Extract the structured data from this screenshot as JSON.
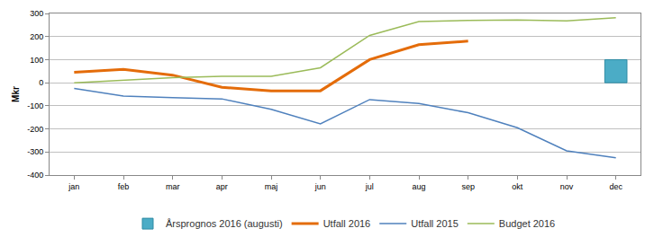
{
  "chart_data": {
    "type": "line",
    "y_label": "Mkr",
    "categories": [
      "jan",
      "feb",
      "mar",
      "apr",
      "maj",
      "jun",
      "jul",
      "aug",
      "sep",
      "okt",
      "nov",
      "dec"
    ],
    "series": [
      {
        "name": "Årsprognos 2016 (augusti)",
        "type": "bar",
        "color": "#4bacc6",
        "values": [
          null,
          null,
          null,
          null,
          null,
          null,
          null,
          null,
          null,
          null,
          null,
          100
        ]
      },
      {
        "name": "Utfall 2016",
        "type": "line",
        "color": "#e46c0a",
        "values": [
          45,
          58,
          33,
          -20,
          -35,
          -35,
          100,
          165,
          180,
          null,
          null,
          null
        ]
      },
      {
        "name": "Utfall 2015",
        "type": "line",
        "color": "#4f81bd",
        "values": [
          -25,
          -58,
          -65,
          -70,
          -115,
          -178,
          -73,
          -90,
          -130,
          -195,
          -295,
          -325
        ]
      },
      {
        "name": "Budget 2016",
        "type": "line",
        "color": "#9bbb59",
        "values": [
          0,
          12,
          22,
          28,
          28,
          65,
          205,
          265,
          270,
          272,
          268,
          282
        ]
      }
    ],
    "ylim": [
      -400,
      300
    ],
    "yticks": [
      -400,
      -300,
      -200,
      -100,
      0,
      100,
      200,
      300
    ],
    "grid": true,
    "legend": "bottom"
  }
}
